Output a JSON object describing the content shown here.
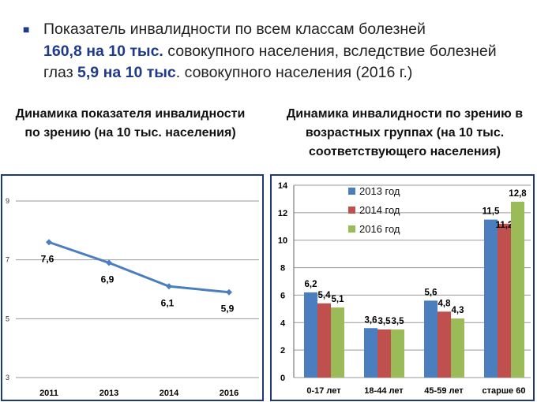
{
  "header": {
    "line1": "Показатель инвалидности по всем классам болезней",
    "line2_bold": "160,8 на 10 тыс.",
    "line2_rest": " совокупного населения, вследствие болезней",
    "line3_pre": "глаз ",
    "line3_bold": "5,9 на 10 тыс",
    "line3_rest": ". совокупного населения (2016 г.)"
  },
  "chart_data": [
    {
      "type": "line",
      "title": "Динамика показателя инвалидности по зрению (на 10 тыс. населения)",
      "categories": [
        "2011",
        "2013",
        "2014",
        "2016"
      ],
      "values": [
        7.6,
        6.9,
        6.1,
        5.9
      ],
      "data_labels": [
        "7,6",
        "6,9",
        "6,1",
        "5,9"
      ],
      "yticks": [
        "3",
        "5",
        "7",
        "9"
      ],
      "ylim": [
        3,
        9
      ],
      "grid": true,
      "color": "#4a7ebf"
    },
    {
      "type": "bar",
      "title": "Динамика инвалидности по зрению в возрастных группах (на 10 тыс. соответствующего населения)",
      "categories": [
        "0-17 лет",
        "18-44 лет",
        "45-59 лет",
        "старше 60"
      ],
      "series": [
        {
          "name": "2013 год",
          "color": "#4a7ebf",
          "values": [
            6.2,
            3.6,
            5.6,
            11.5
          ],
          "labels": [
            "6,2",
            "3,6",
            "5,6",
            "11,5"
          ]
        },
        {
          "name": "2014 год",
          "color": "#c0504d",
          "values": [
            5.4,
            3.5,
            4.8,
            11.2
          ],
          "labels": [
            "5,4",
            "3,5",
            "4,8",
            "11,2"
          ]
        },
        {
          "name": "2016 год",
          "color": "#9bbb59",
          "values": [
            5.1,
            3.5,
            4.3,
            12.8
          ],
          "labels": [
            "5,1",
            "3,5",
            "4,3",
            "12,8"
          ]
        }
      ],
      "yticks": [
        "0",
        "2",
        "4",
        "6",
        "8",
        "10",
        "12",
        "14"
      ],
      "ylim": [
        0,
        14
      ],
      "grid": true,
      "legend": "top-left"
    }
  ]
}
